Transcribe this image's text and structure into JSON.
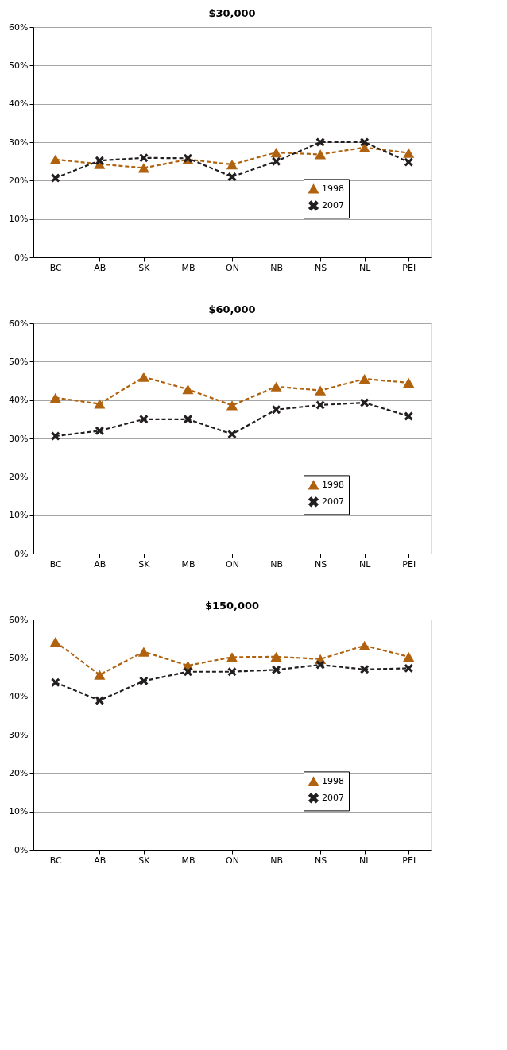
{
  "chart_data": [
    {
      "type": "line",
      "title": "$30,000",
      "categories": [
        "BC",
        "AB",
        "SK",
        "MB",
        "ON",
        "NB",
        "NS",
        "NL",
        "PEI"
      ],
      "series": [
        {
          "name": "1998",
          "color": "#b0620f",
          "marker": "triangle",
          "values": [
            25.5,
            24.3,
            23.3,
            25.5,
            24.2,
            27.3,
            26.8,
            28.6,
            27.2
          ]
        },
        {
          "name": "2007",
          "color": "#231f20",
          "marker": "cross",
          "values": [
            20.7,
            25.2,
            25.9,
            25.8,
            21.0,
            25.0,
            30.0,
            30.0,
            24.8
          ]
        }
      ],
      "ylim": [
        0,
        60
      ],
      "yticks": [
        {
          "value": 0,
          "label": "0%"
        },
        {
          "value": 10,
          "label": "10%"
        },
        {
          "value": 20,
          "label": "20%"
        },
        {
          "value": 30,
          "label": "30%"
        },
        {
          "value": 40,
          "label": "40%"
        },
        {
          "value": 50,
          "label": "50%"
        },
        {
          "value": 60,
          "label": "60%"
        }
      ],
      "grid": "y",
      "legend": "bottom right",
      "line_style": "dashed"
    },
    {
      "type": "line",
      "title": "$60,000",
      "categories": [
        "BC",
        "AB",
        "SK",
        "MB",
        "ON",
        "NB",
        "NS",
        "NL",
        "PEI"
      ],
      "series": [
        {
          "name": "1998",
          "color": "#b0620f",
          "marker": "triangle",
          "values": [
            40.6,
            39.0,
            46.0,
            42.8,
            38.6,
            43.5,
            42.5,
            45.5,
            44.5
          ]
        },
        {
          "name": "2007",
          "color": "#231f20",
          "marker": "cross",
          "values": [
            30.6,
            32.0,
            35.0,
            35.0,
            31.1,
            37.5,
            38.7,
            39.3,
            35.8
          ]
        }
      ],
      "ylim": [
        0,
        60
      ],
      "yticks": [
        {
          "value": 0,
          "label": "0%"
        },
        {
          "value": 10,
          "label": "10%"
        },
        {
          "value": 20,
          "label": "20%"
        },
        {
          "value": 30,
          "label": "30%"
        },
        {
          "value": 40,
          "label": "40%"
        },
        {
          "value": 50,
          "label": "50%"
        },
        {
          "value": 60,
          "label": "60%"
        }
      ],
      "grid": "y",
      "legend": "bottom right",
      "line_style": "dashed"
    },
    {
      "type": "line",
      "title": "$150,000",
      "categories": [
        "BC",
        "AB",
        "SK",
        "MB",
        "ON",
        "NB",
        "NS",
        "NL",
        "PEI"
      ],
      "series": [
        {
          "name": "1998",
          "color": "#b0620f",
          "marker": "triangle",
          "values": [
            54.2,
            45.6,
            51.6,
            48.0,
            50.2,
            50.3,
            49.7,
            53.2,
            50.3
          ]
        },
        {
          "name": "2007",
          "color": "#231f20",
          "marker": "cross",
          "values": [
            43.6,
            38.9,
            44.0,
            46.4,
            46.4,
            46.9,
            48.2,
            47.0,
            47.3
          ]
        }
      ],
      "ylim": [
        0,
        60
      ],
      "yticks": [
        {
          "value": 0,
          "label": "0%"
        },
        {
          "value": 10,
          "label": "10%"
        },
        {
          "value": 20,
          "label": "20%"
        },
        {
          "value": 30,
          "label": "30%"
        },
        {
          "value": 40,
          "label": "40%"
        },
        {
          "value": 50,
          "label": "50%"
        },
        {
          "value": 60,
          "label": "60%"
        }
      ],
      "grid": "y",
      "legend": "bottom right",
      "line_style": "dashed"
    }
  ]
}
